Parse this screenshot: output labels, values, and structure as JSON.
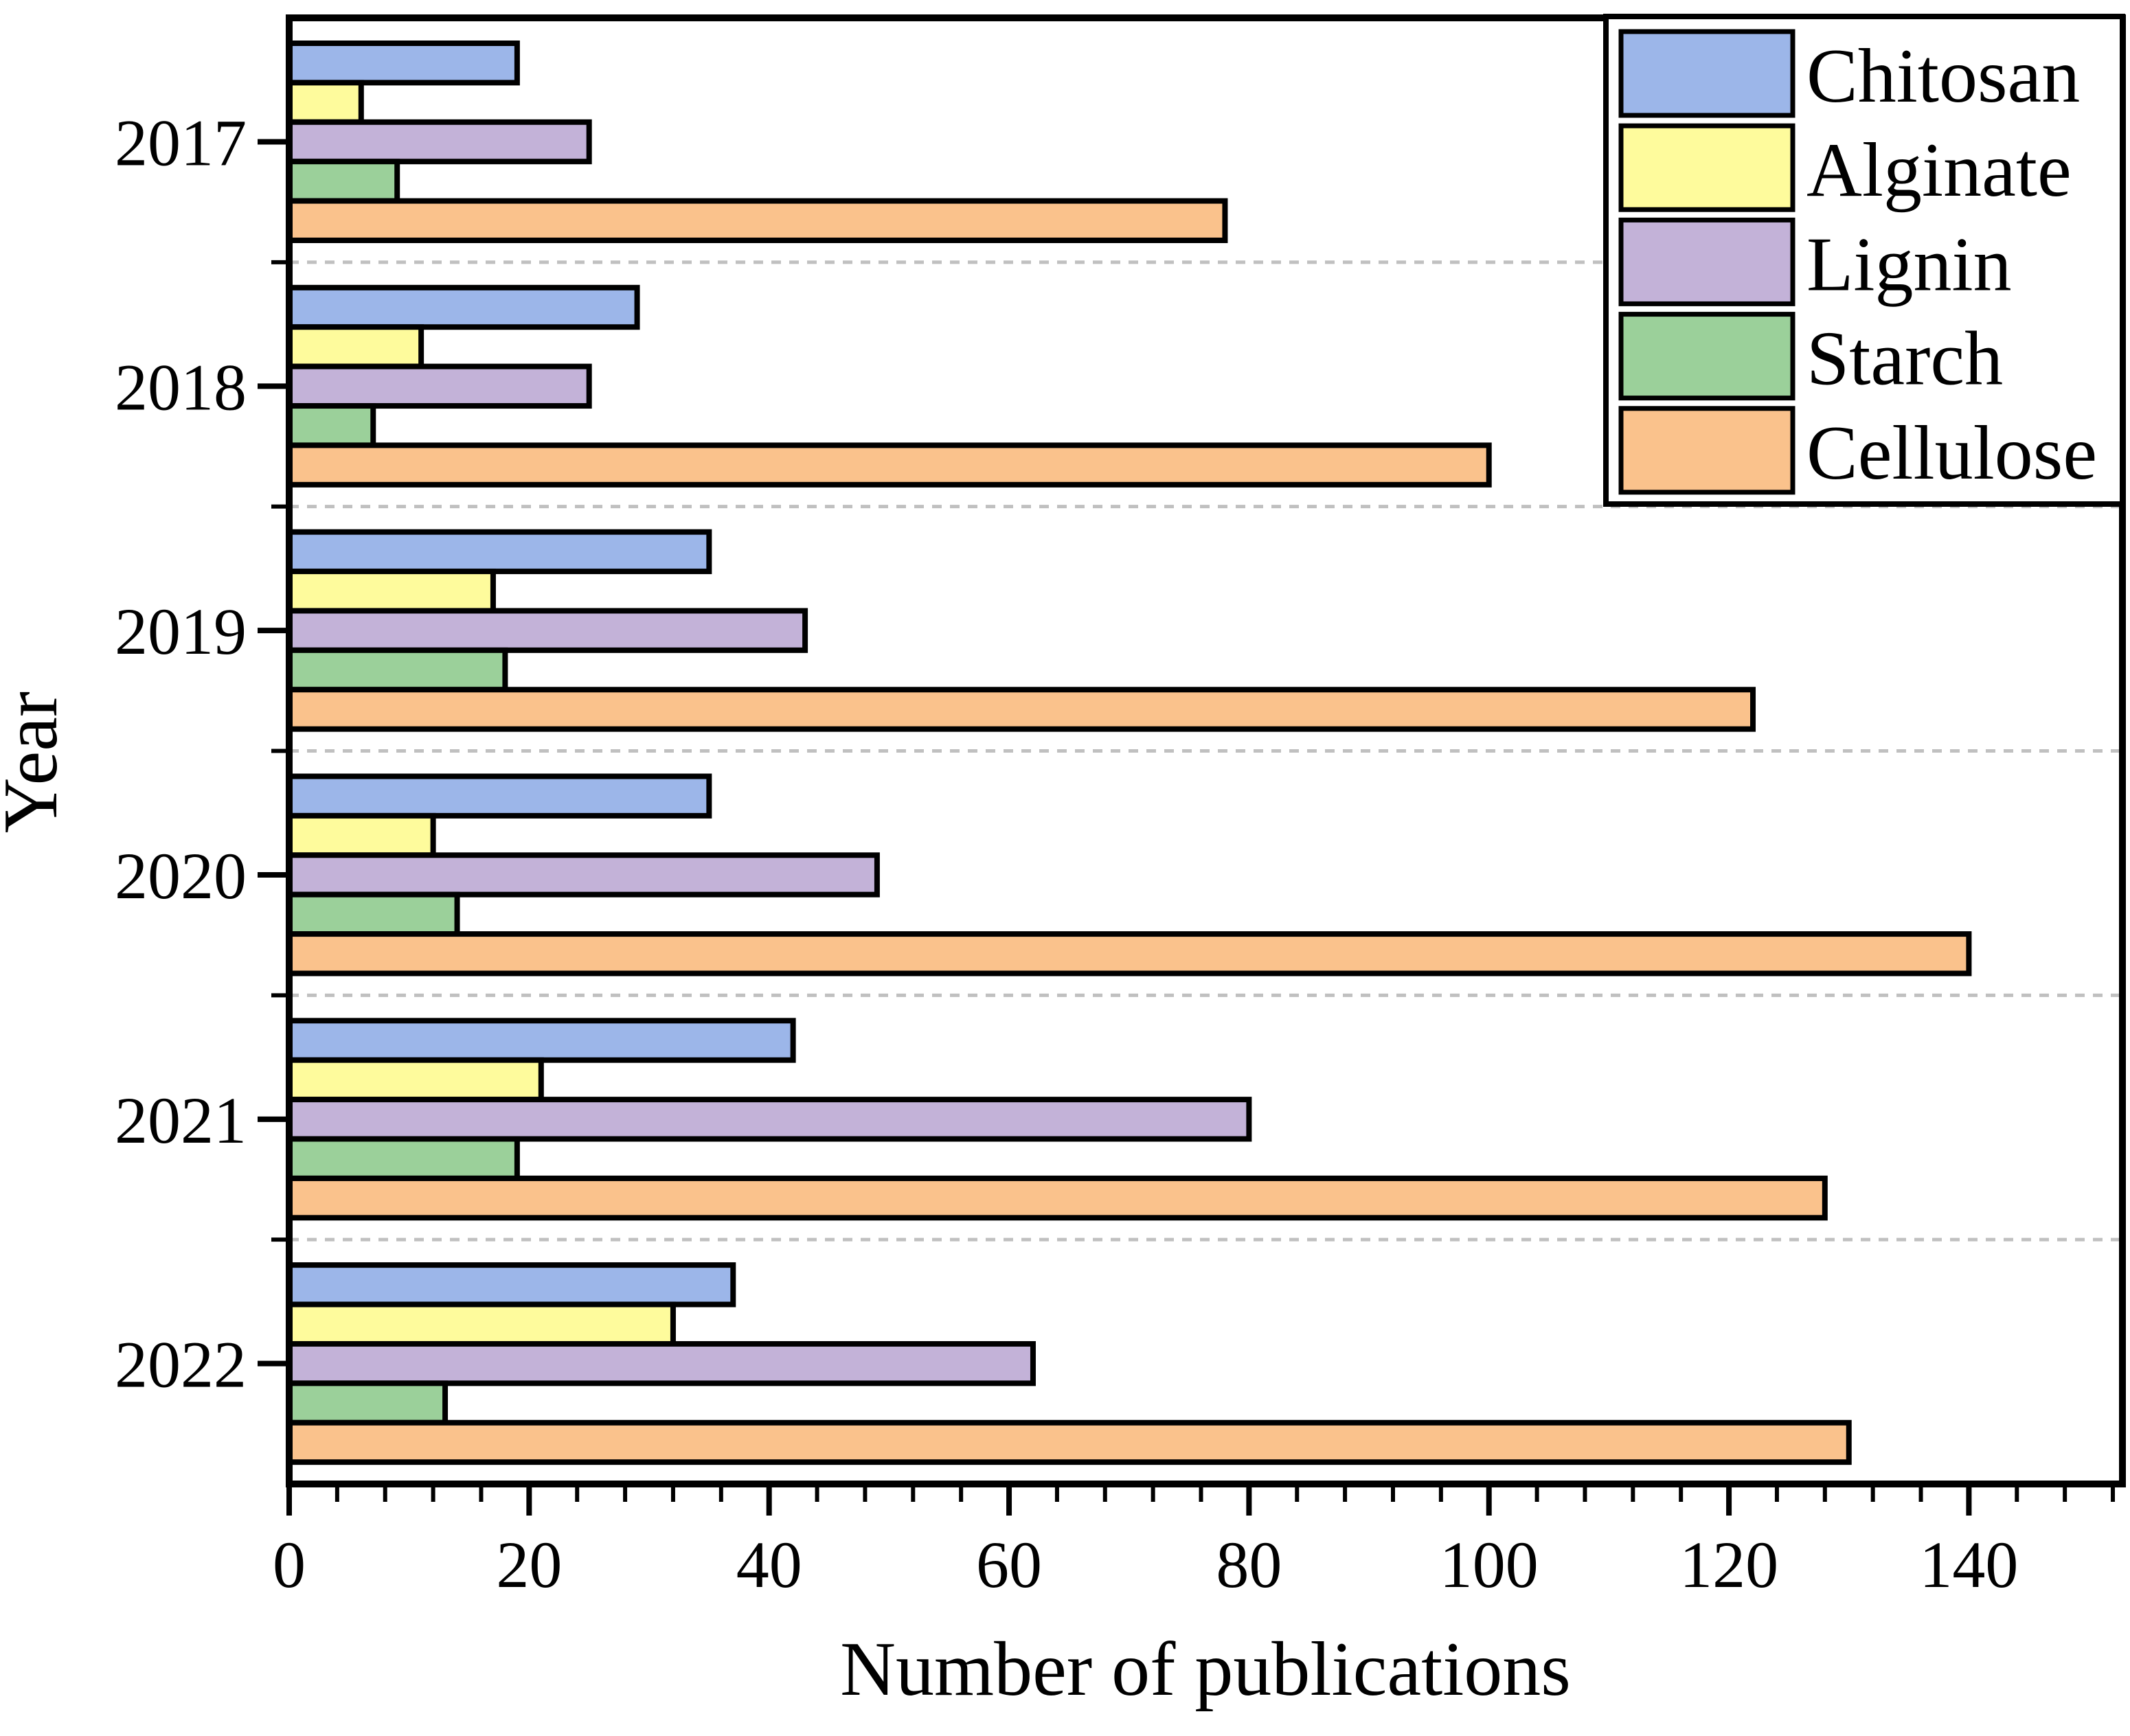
{
  "chart_data": {
    "type": "bar",
    "orientation": "horizontal",
    "title": "",
    "xlabel": "Number of publications",
    "ylabel": "Year",
    "categories": [
      "2017",
      "2018",
      "2019",
      "2020",
      "2021",
      "2022"
    ],
    "series": [
      {
        "name": "Chitosan",
        "color": "#9cb6e9",
        "values": [
          19,
          29,
          35,
          35,
          42,
          37
        ]
      },
      {
        "name": "Alginate",
        "color": "#fefb9c",
        "values": [
          6,
          11,
          17,
          12,
          21,
          32
        ]
      },
      {
        "name": "Lignin",
        "color": "#c3b2d8",
        "values": [
          25,
          25,
          43,
          49,
          80,
          62
        ]
      },
      {
        "name": "Starch",
        "color": "#9bd09a",
        "values": [
          9,
          7,
          18,
          14,
          19,
          13
        ]
      },
      {
        "name": "Cellulose",
        "color": "#fac28c",
        "values": [
          78,
          100,
          122,
          140,
          128,
          130
        ]
      }
    ],
    "x_axis": {
      "min": 0,
      "max": 152.8,
      "major_ticks": [
        0,
        20,
        40,
        60,
        80,
        100,
        120,
        140
      ],
      "minor_step": 4
    },
    "y_axis": {
      "grid": "dashed separators between year groups"
    },
    "legend": {
      "position": "top-right"
    },
    "colors": {
      "bar_border": "#000000",
      "gridline": "#c0c0c0",
      "frame": "#000000",
      "background": "#ffffff"
    }
  }
}
